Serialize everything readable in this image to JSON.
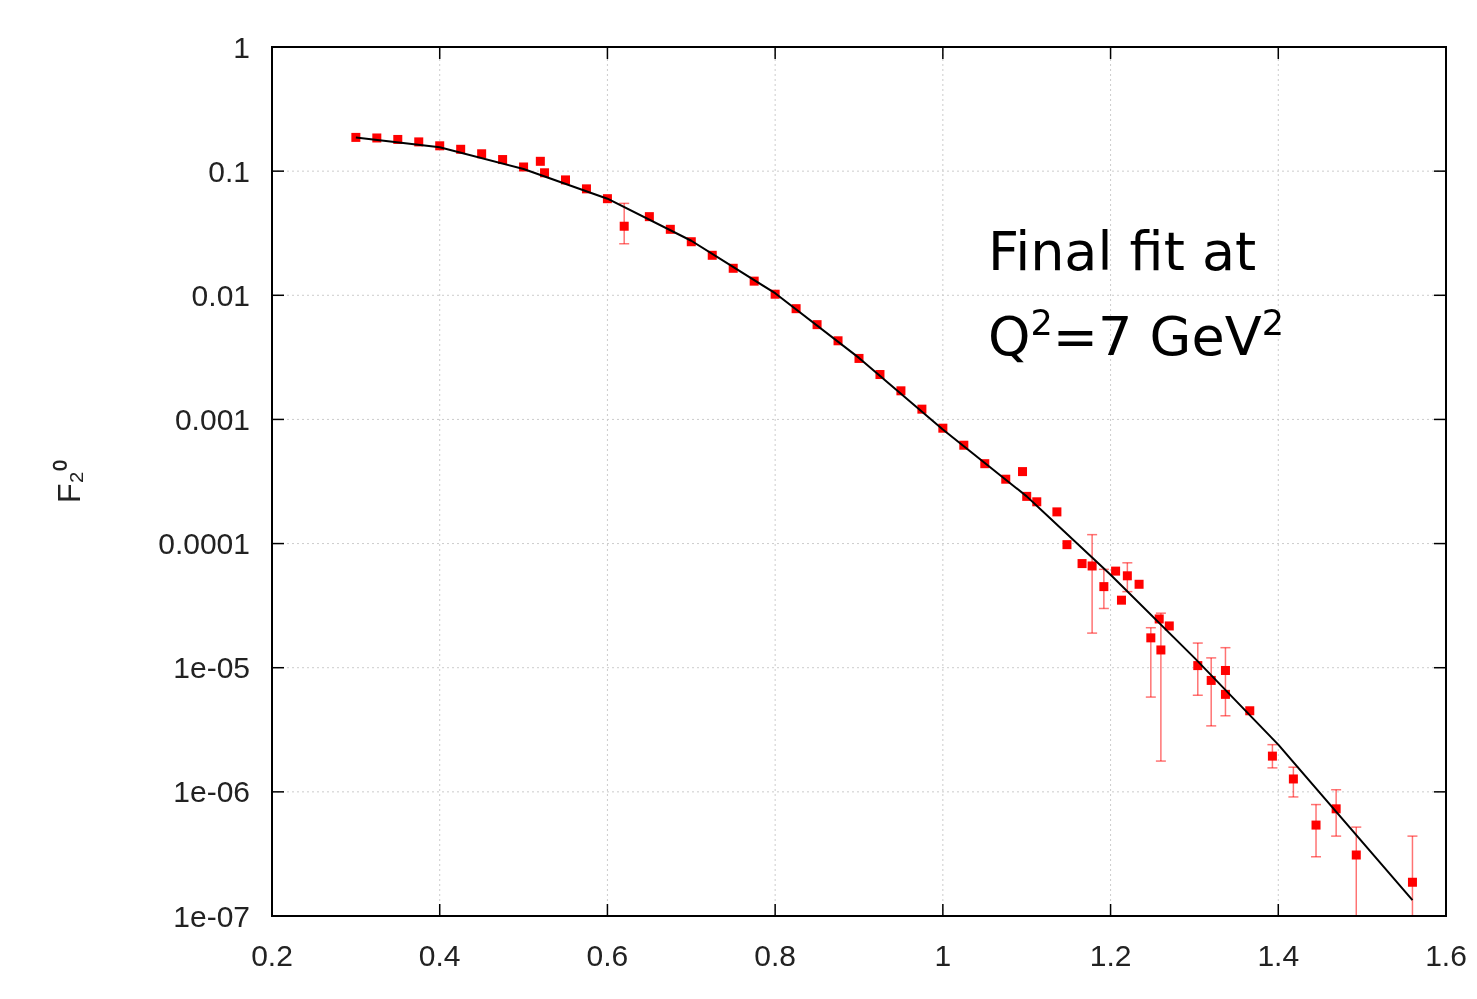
{
  "chart_data": {
    "type": "scatter",
    "ylabel": "F₂⁰",
    "log": "y",
    "grid": true,
    "xlim": [
      0.2,
      1.6
    ],
    "xticks": [
      0.2,
      0.4,
      0.6,
      0.8,
      1,
      1.2,
      1.4,
      1.6
    ],
    "ylim": [
      1e-07,
      1
    ],
    "yticks": [
      1,
      0.1,
      0.01,
      0.001,
      0.0001,
      {
        "value": 1e-05,
        "label": "1e-05"
      },
      {
        "value": 1e-06,
        "label": "1e-06"
      },
      {
        "value": 1e-07,
        "label": "1e-07"
      }
    ],
    "annotations": [
      "Final fit at Q$^{2}$=7 GeV$^{2}$"
    ],
    "series": [
      {
        "marker": "square",
        "color": "#ff0000",
        "x": [
          0.3,
          0.325,
          0.35,
          0.375,
          0.4,
          0.425,
          0.45,
          0.475,
          0.5,
          0.52,
          0.525,
          0.55,
          0.575,
          0.6,
          0.62,
          0.65,
          0.675,
          0.7,
          0.725,
          0.75,
          0.775,
          0.8,
          0.825,
          0.85,
          0.875,
          0.9,
          0.925,
          0.95,
          0.975,
          1,
          1.025,
          1.05,
          1.075,
          1.095,
          1.1,
          1.112,
          1.136,
          1.148,
          1.166,
          1.178,
          1.192,
          1.206,
          1.213,
          1.22,
          1.234,
          1.248,
          1.258,
          1.26,
          1.27,
          1.304,
          1.32,
          1.337,
          1.337,
          1.366,
          1.393,
          1.418,
          1.445,
          1.469,
          1.493,
          1.56
        ],
        "values": [
          0.187,
          0.185,
          0.18,
          0.172,
          0.16,
          0.15,
          0.138,
          0.124,
          0.108,
          0.12,
          0.097,
          0.085,
          0.072,
          0.06,
          0.036,
          0.043,
          0.034,
          0.027,
          0.021,
          0.0165,
          0.013,
          0.0102,
          0.0078,
          0.0058,
          0.0043,
          0.0031,
          0.0023,
          0.0017,
          0.00121,
          0.00085,
          0.00062,
          0.00044,
          0.00033,
          0.00038,
          0.00024,
          0.000217,
          0.00018,
          9.8e-05,
          6.9e-05,
          6.6e-05,
          4.5e-05,
          6e-05,
          3.5e-05,
          5.5e-05,
          4.7e-05,
          1.74e-05,
          2.47e-05,
          1.39e-05,
          2.17e-05,
          1.04e-05,
          7.9e-06,
          9.5e-06,
          6.1e-06,
          4.5e-06,
          1.94e-06,
          1.27e-06,
          5.4e-07,
          7.3e-07,
          3.1e-07,
          1.87e-07
        ],
        "errors": [
          null,
          null,
          null,
          null,
          null,
          null,
          null,
          null,
          null,
          null,
          null,
          null,
          null,
          null,
          [
            0.026,
            0.055
          ],
          null,
          null,
          null,
          null,
          null,
          null,
          null,
          null,
          null,
          null,
          null,
          null,
          null,
          null,
          null,
          null,
          null,
          null,
          null,
          null,
          null,
          null,
          null,
          null,
          [
            1.9e-05,
            0.000118
          ],
          [
            3e-05,
            6.2e-05
          ],
          null,
          null,
          [
            4.1e-05,
            7e-05
          ],
          null,
          [
            5.8e-06,
            2.1e-05
          ],
          null,
          [
            1.77e-06,
            2.75e-05
          ],
          null,
          [
            6e-06,
            1.58e-05
          ],
          [
            3.4e-06,
            1.2e-05
          ],
          [
            4.1e-06,
            1.45e-05
          ],
          null,
          null,
          [
            1.56e-06,
            2.4e-06
          ],
          [
            9.1e-07,
            1.58e-06
          ],
          [
            3e-07,
            7.9e-07
          ],
          [
            4.4e-07,
            1.04e-06
          ],
          [
            1e-07,
            5.2e-07
          ],
          [
            1e-07,
            4.4e-07
          ]
        ]
      },
      {
        "type": "line",
        "color": "#000000",
        "x": [
          0.3,
          0.4,
          0.5,
          0.6,
          0.7,
          0.8,
          0.9,
          1,
          1.1,
          1.2,
          1.3,
          1.4,
          1.56
        ],
        "values": [
          0.187,
          0.156,
          0.104,
          0.06,
          0.0275,
          0.0104,
          0.00313,
          0.00083,
          0.00024,
          5.6e-05,
          1.2e-05,
          2.4e-06,
          1.34e-07
        ]
      }
    ]
  }
}
